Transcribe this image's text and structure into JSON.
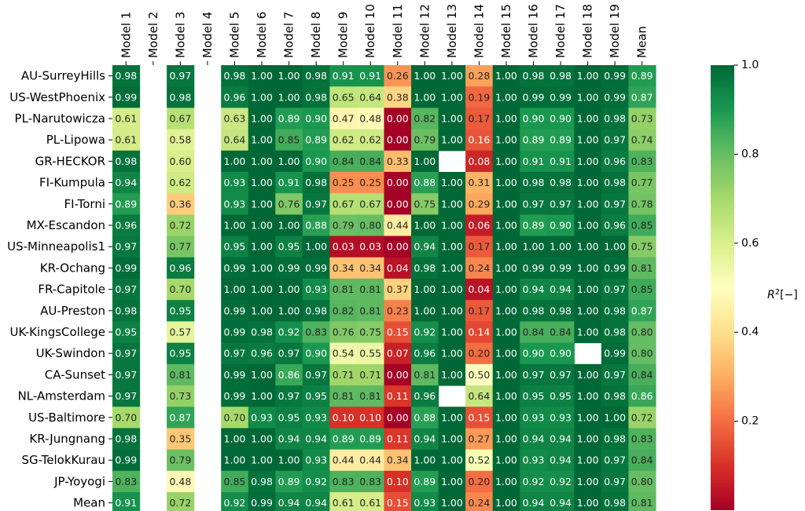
{
  "chart_data": {
    "type": "heatmap",
    "title": "",
    "xlabel": "",
    "ylabel": "",
    "colorbar_label": "R²[−]",
    "colorbar_label_parts": {
      "base": "R",
      "sup": "2",
      "unit": "[−]"
    },
    "value_range": [
      0.0,
      1.0
    ],
    "colorbar_ticks": [
      "0.2",
      "0.4",
      "0.6",
      "0.8",
      "1.0"
    ],
    "colormap": "RdYlGn",
    "missing_color": "#ffffff",
    "columns": [
      "Model 1",
      "Model 2",
      "Model 3",
      "Model 4",
      "Model 5",
      "Model 6",
      "Model 7",
      "Model 8",
      "Model 9",
      "Model 10",
      "Model 11",
      "Model 12",
      "Model 13",
      "Model 14",
      "Model 15",
      "Model 16",
      "Model 17",
      "Model 18",
      "Model 19",
      "Mean"
    ],
    "rows": [
      "AU-SurreyHills",
      "US-WestPhoenix",
      "PL-Narutowicza",
      "PL-Lipowa",
      "GR-HECKOR",
      "FI-Kumpula",
      "FI-Torni",
      "MX-Escandon",
      "US-Minneapolis1",
      "KR-Ochang",
      "FR-Capitole",
      "AU-Preston",
      "UK-KingsCollege",
      "UK-Swindon",
      "CA-Sunset",
      "NL-Amsterdam",
      "US-Baltimore",
      "KR-Jungnang",
      "SG-TelokKurau",
      "JP-Yoyogi",
      "Mean"
    ],
    "values": [
      [
        0.98,
        null,
        0.97,
        null,
        0.98,
        1.0,
        1.0,
        0.98,
        0.91,
        0.91,
        0.26,
        1.0,
        1.0,
        0.28,
        1.0,
        0.98,
        0.98,
        1.0,
        0.99,
        0.89
      ],
      [
        0.99,
        null,
        0.98,
        null,
        0.96,
        1.0,
        1.0,
        0.98,
        0.65,
        0.64,
        0.38,
        1.0,
        1.0,
        0.19,
        1.0,
        0.99,
        0.99,
        1.0,
        0.99,
        0.87
      ],
      [
        0.61,
        null,
        0.67,
        null,
        0.63,
        1.0,
        0.89,
        0.9,
        0.47,
        0.48,
        0.0,
        0.82,
        1.0,
        0.17,
        1.0,
        0.9,
        0.9,
        1.0,
        0.98,
        0.73
      ],
      [
        0.61,
        null,
        0.58,
        null,
        0.64,
        1.0,
        0.85,
        0.89,
        0.62,
        0.62,
        0.0,
        0.79,
        1.0,
        0.16,
        1.0,
        0.89,
        0.89,
        1.0,
        0.97,
        0.74
      ],
      [
        0.98,
        null,
        0.6,
        null,
        1.0,
        1.0,
        1.0,
        0.9,
        0.84,
        0.84,
        0.33,
        1.0,
        null,
        0.08,
        1.0,
        0.91,
        0.91,
        1.0,
        0.96,
        0.83
      ],
      [
        0.94,
        null,
        0.62,
        null,
        0.93,
        1.0,
        0.91,
        0.98,
        0.25,
        0.25,
        0.0,
        0.88,
        1.0,
        0.31,
        1.0,
        0.98,
        0.98,
        1.0,
        0.98,
        0.77
      ],
      [
        0.89,
        null,
        0.36,
        null,
        0.93,
        1.0,
        0.76,
        0.97,
        0.67,
        0.67,
        0.0,
        0.75,
        1.0,
        0.29,
        1.0,
        0.97,
        0.97,
        1.0,
        0.97,
        0.78
      ],
      [
        0.96,
        null,
        0.72,
        null,
        1.0,
        1.0,
        1.0,
        0.88,
        0.79,
        0.8,
        0.44,
        1.0,
        1.0,
        0.06,
        1.0,
        0.89,
        0.9,
        1.0,
        0.96,
        0.85
      ],
      [
        0.97,
        null,
        0.77,
        null,
        0.95,
        1.0,
        0.95,
        1.0,
        0.03,
        0.03,
        0.0,
        0.94,
        1.0,
        0.17,
        1.0,
        1.0,
        1.0,
        1.0,
        1.0,
        0.75
      ],
      [
        0.99,
        null,
        0.96,
        null,
        0.99,
        1.0,
        0.99,
        0.99,
        0.34,
        0.34,
        0.04,
        0.98,
        1.0,
        0.24,
        1.0,
        0.99,
        0.99,
        1.0,
        0.99,
        0.81
      ],
      [
        0.97,
        null,
        0.7,
        null,
        1.0,
        1.0,
        1.0,
        0.93,
        0.81,
        0.81,
        0.37,
        1.0,
        1.0,
        0.04,
        1.0,
        0.94,
        0.94,
        1.0,
        0.97,
        0.85
      ],
      [
        0.98,
        null,
        0.95,
        null,
        0.99,
        1.0,
        1.0,
        0.98,
        0.82,
        0.81,
        0.23,
        1.0,
        1.0,
        0.17,
        1.0,
        0.98,
        0.98,
        1.0,
        0.98,
        0.87
      ],
      [
        0.95,
        null,
        0.57,
        null,
        0.99,
        0.98,
        0.92,
        0.83,
        0.76,
        0.75,
        0.15,
        0.92,
        1.0,
        0.14,
        1.0,
        0.84,
        0.84,
        1.0,
        0.98,
        0.8
      ],
      [
        0.97,
        null,
        0.95,
        null,
        0.97,
        0.96,
        0.97,
        0.9,
        0.54,
        0.55,
        0.07,
        0.96,
        1.0,
        0.2,
        1.0,
        0.9,
        0.9,
        null,
        0.99,
        0.8
      ],
      [
        0.97,
        null,
        0.81,
        null,
        0.99,
        1.0,
        0.86,
        0.97,
        0.71,
        0.71,
        0.0,
        0.81,
        1.0,
        0.5,
        1.0,
        0.97,
        0.97,
        1.0,
        0.97,
        0.84
      ],
      [
        0.97,
        null,
        0.73,
        null,
        0.99,
        1.0,
        0.97,
        0.95,
        0.81,
        0.81,
        0.11,
        0.96,
        null,
        0.64,
        1.0,
        0.95,
        0.95,
        1.0,
        0.98,
        0.86
      ],
      [
        0.7,
        null,
        0.87,
        null,
        0.7,
        0.93,
        0.95,
        0.93,
        0.1,
        0.1,
        0.0,
        0.88,
        1.0,
        0.15,
        1.0,
        0.93,
        0.93,
        1.0,
        1.0,
        0.72
      ],
      [
        0.98,
        null,
        0.35,
        null,
        1.0,
        1.0,
        0.94,
        0.94,
        0.89,
        0.89,
        0.11,
        0.94,
        1.0,
        0.27,
        1.0,
        0.94,
        0.94,
        1.0,
        0.98,
        0.83
      ],
      [
        0.99,
        null,
        0.79,
        null,
        1.0,
        1.0,
        1.0,
        0.93,
        0.44,
        0.44,
        0.34,
        1.0,
        1.0,
        0.52,
        1.0,
        0.93,
        0.94,
        1.0,
        0.97,
        0.84
      ],
      [
        0.83,
        null,
        0.48,
        null,
        0.85,
        0.98,
        0.89,
        0.92,
        0.83,
        0.83,
        0.1,
        0.89,
        1.0,
        0.2,
        1.0,
        0.92,
        0.92,
        1.0,
        0.97,
        0.8
      ],
      [
        0.91,
        null,
        0.72,
        null,
        0.92,
        0.99,
        0.94,
        0.94,
        0.61,
        0.61,
        0.15,
        0.93,
        1.0,
        0.24,
        1.0,
        0.94,
        0.94,
        1.0,
        0.98,
        0.81
      ]
    ]
  }
}
